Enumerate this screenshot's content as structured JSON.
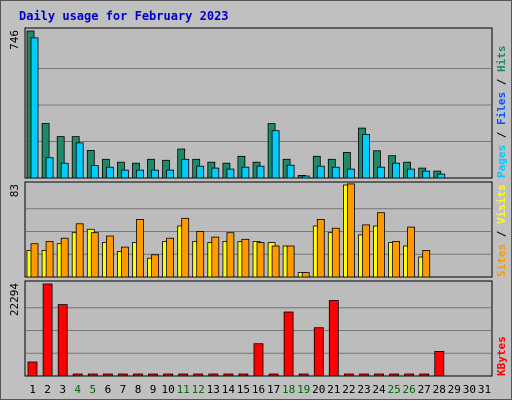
{
  "chart_data": {
    "type": "bar",
    "title": "Daily usage for February 2023",
    "x": [
      "1",
      "2",
      "3",
      "4",
      "5",
      "6",
      "7",
      "8",
      "9",
      "10",
      "11",
      "12",
      "13",
      "14",
      "15",
      "16",
      "17",
      "18",
      "19",
      "20",
      "21",
      "22",
      "23",
      "24",
      "25",
      "26",
      "27",
      "28",
      "29",
      "30",
      "31"
    ],
    "weekend_days": [
      "4",
      "5",
      "11",
      "12",
      "18",
      "19",
      "25",
      "26"
    ],
    "colors": {
      "hits": "#1e8a6a",
      "files": "#00ccff",
      "pages": "#00aaff",
      "visits": "#ffff00",
      "sites": "#ff9900",
      "kbytes": "#ff0000",
      "weekday_label": "#000000",
      "weekend_label": "#006600",
      "title": "#0000cc"
    },
    "panels": [
      {
        "id": "hits",
        "max_label": "746",
        "ymax": 746,
        "right_label": [
          {
            "text": "Pages",
            "color": "#00ccff"
          },
          {
            "text": " / ",
            "color": "#000000"
          },
          {
            "text": "Files",
            "color": "#0055ff"
          },
          {
            "text": " / ",
            "color": "#000000"
          },
          {
            "text": "Hits",
            "color": "#1e8a6a"
          }
        ],
        "series": [
          {
            "name": "Hits",
            "color": "#1e8a6a",
            "values": [
              746,
              277,
              210,
              210,
              140,
              95,
              80,
              75,
              95,
              90,
              147,
              95,
              80,
              75,
              110,
              80,
              276,
              95,
              13,
              110,
              95,
              130,
              253,
              138,
              113,
              80,
              50,
              35,
              0,
              0,
              0
            ]
          },
          {
            "name": "Files",
            "color": "#00ccff",
            "values": [
              711,
              103,
              75,
              178,
              63,
              55,
              40,
              40,
              40,
              40,
              95,
              60,
              50,
              45,
              55,
              60,
              240,
              65,
              8,
              60,
              55,
              45,
              220,
              55,
              75,
              45,
              35,
              20,
              0,
              0,
              0
            ]
          }
        ]
      },
      {
        "id": "visits",
        "max_label": "83",
        "ymax": 83,
        "right_label": [
          {
            "text": "Sites",
            "color": "#ff9900"
          },
          {
            "text": " / ",
            "color": "#000000"
          },
          {
            "text": "Visits",
            "color": "#ffff00"
          }
        ],
        "series": [
          {
            "name": "Visits",
            "color": "#ffff00",
            "values": [
              24,
              24,
              30,
              40,
              43,
              31,
              23,
              31,
              17,
              32,
              46,
              32,
              31,
              32,
              32,
              32,
              31,
              28,
              4,
              46,
              40,
              83,
              38,
              46,
              31,
              28,
              18,
              0,
              0,
              0,
              0
            ]
          },
          {
            "name": "Sites",
            "color": "#ff9900",
            "values": [
              30,
              32,
              35,
              48,
              40,
              37,
              27,
              52,
              20,
              35,
              53,
              41,
              36,
              40,
              34,
              31,
              28,
              28,
              4,
              52,
              44,
              84,
              47,
              58,
              32,
              45,
              24,
              0,
              0,
              0,
              0
            ]
          }
        ]
      },
      {
        "id": "kbytes",
        "max_label": "22294",
        "ymax": 22294,
        "right_label": [
          {
            "text": "KBytes",
            "color": "#ff0000"
          }
        ],
        "series": [
          {
            "name": "KBytes",
            "color": "#ff0000",
            "values": [
              3400,
              22294,
              17300,
              0,
              0,
              0,
              0,
              0,
              0,
              0,
              0,
              0,
              0,
              0,
              0,
              7830,
              0,
              15500,
              0,
              11700,
              18300,
              0,
              0,
              0,
              0,
              0,
              0,
              5950,
              0,
              0,
              0
            ]
          }
        ]
      }
    ]
  }
}
